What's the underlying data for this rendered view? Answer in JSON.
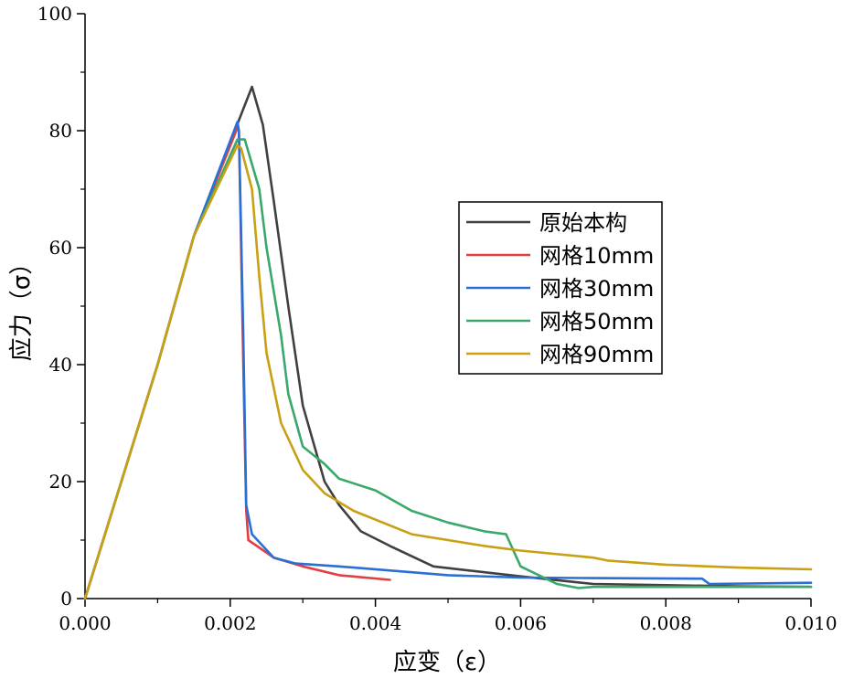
{
  "chart_data": {
    "type": "line",
    "title": "",
    "xlabel": "应变（ε）",
    "ylabel": "应力（σ）",
    "xlim": [
      0,
      0.01
    ],
    "ylim": [
      0,
      100
    ],
    "x_ticks": [
      0,
      0.002,
      0.004,
      0.006,
      0.008,
      0.01
    ],
    "x_tick_labels": [
      "0.000",
      "0.002",
      "0.004",
      "0.006",
      "0.008",
      "0.010"
    ],
    "y_ticks": [
      0,
      20,
      40,
      60,
      80,
      100
    ],
    "y_tick_labels": [
      "0",
      "20",
      "40",
      "60",
      "80",
      "100"
    ],
    "grid": false,
    "legend_position": "center-right",
    "series": [
      {
        "name": "原始本构",
        "color": "#404040",
        "points": [
          [
            0,
            0
          ],
          [
            0.0005,
            20
          ],
          [
            0.001,
            40
          ],
          [
            0.0015,
            62
          ],
          [
            0.002,
            78
          ],
          [
            0.0023,
            87.5
          ],
          [
            0.00245,
            81
          ],
          [
            0.0026,
            68
          ],
          [
            0.0028,
            50
          ],
          [
            0.003,
            33
          ],
          [
            0.0033,
            20
          ],
          [
            0.0035,
            16
          ],
          [
            0.0038,
            11.5
          ],
          [
            0.0042,
            9
          ],
          [
            0.0048,
            5.5
          ],
          [
            0.006,
            3.8
          ],
          [
            0.007,
            2.5
          ],
          [
            0.008,
            2.3
          ],
          [
            0.009,
            2.1
          ],
          [
            0.01,
            2.0
          ]
        ]
      },
      {
        "name": "网格10mm",
        "color": "#e04040",
        "points": [
          [
            0,
            0
          ],
          [
            0.0005,
            20
          ],
          [
            0.001,
            40
          ],
          [
            0.0015,
            62
          ],
          [
            0.0021,
            80.5
          ],
          [
            0.00212,
            80
          ],
          [
            0.00218,
            40
          ],
          [
            0.00222,
            15
          ],
          [
            0.00225,
            10
          ],
          [
            0.0026,
            7
          ],
          [
            0.003,
            5.5
          ],
          [
            0.0035,
            4
          ],
          [
            0.0042,
            3.2
          ]
        ]
      },
      {
        "name": "网格30mm",
        "color": "#2a6fd6",
        "points": [
          [
            0,
            0
          ],
          [
            0.0005,
            20
          ],
          [
            0.001,
            40
          ],
          [
            0.0015,
            62
          ],
          [
            0.0021,
            81.5
          ],
          [
            0.00212,
            80
          ],
          [
            0.00218,
            45
          ],
          [
            0.00222,
            16
          ],
          [
            0.0023,
            11
          ],
          [
            0.0026,
            7
          ],
          [
            0.0029,
            6
          ],
          [
            0.0035,
            5.5
          ],
          [
            0.0045,
            4.5
          ],
          [
            0.005,
            4
          ],
          [
            0.006,
            3.6
          ],
          [
            0.007,
            3.5
          ],
          [
            0.0085,
            3.4
          ],
          [
            0.0086,
            2.5
          ],
          [
            0.01,
            2.7
          ]
        ]
      },
      {
        "name": "网格50mm",
        "color": "#3aa86a",
        "points": [
          [
            0,
            0
          ],
          [
            0.0005,
            20
          ],
          [
            0.001,
            40
          ],
          [
            0.0015,
            62
          ],
          [
            0.0021,
            78.5
          ],
          [
            0.0022,
            78.5
          ],
          [
            0.0024,
            70
          ],
          [
            0.0025,
            60
          ],
          [
            0.0027,
            45
          ],
          [
            0.0028,
            35
          ],
          [
            0.003,
            26
          ],
          [
            0.0033,
            23
          ],
          [
            0.0035,
            20.5
          ],
          [
            0.004,
            18.5
          ],
          [
            0.0045,
            15
          ],
          [
            0.005,
            13
          ],
          [
            0.0055,
            11.5
          ],
          [
            0.0058,
            11
          ],
          [
            0.006,
            5.5
          ],
          [
            0.0065,
            2.5
          ],
          [
            0.0068,
            1.8
          ],
          [
            0.007,
            2
          ],
          [
            0.008,
            2
          ],
          [
            0.009,
            2
          ],
          [
            0.01,
            2
          ]
        ]
      },
      {
        "name": "网格90mm",
        "color": "#c9a012",
        "points": [
          [
            0,
            0
          ],
          [
            0.0005,
            20
          ],
          [
            0.001,
            40
          ],
          [
            0.0015,
            62
          ],
          [
            0.0021,
            77.5
          ],
          [
            0.00215,
            77
          ],
          [
            0.0023,
            70
          ],
          [
            0.0024,
            55
          ],
          [
            0.0025,
            42
          ],
          [
            0.0027,
            30
          ],
          [
            0.003,
            22
          ],
          [
            0.0033,
            18
          ],
          [
            0.0037,
            15
          ],
          [
            0.0045,
            11
          ],
          [
            0.0055,
            9
          ],
          [
            0.006,
            8.2
          ],
          [
            0.007,
            7
          ],
          [
            0.0072,
            6.5
          ],
          [
            0.008,
            5.8
          ],
          [
            0.009,
            5.3
          ],
          [
            0.01,
            5.0
          ]
        ]
      }
    ]
  }
}
